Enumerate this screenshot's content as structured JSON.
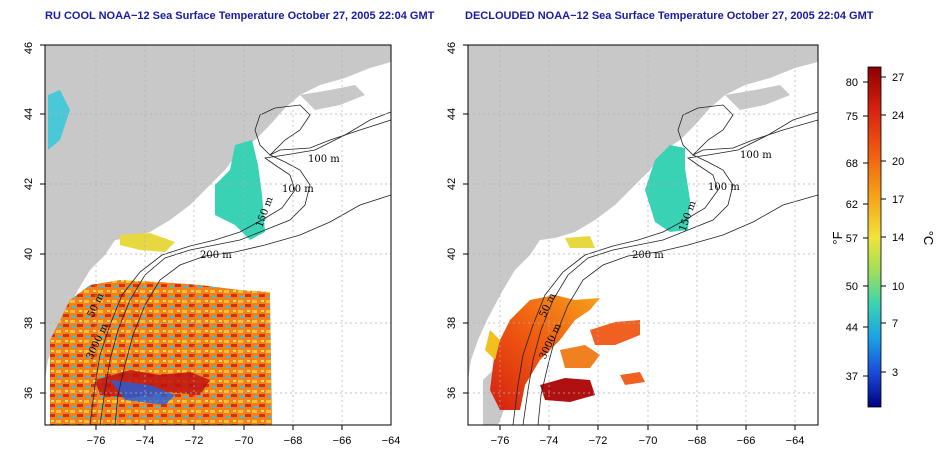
{
  "titles": {
    "left": "RU COOL NOAA−12 Sea Surface Temperature October 27, 2005 22:04 GMT",
    "right": "DECLOUDED NOAA−12 Sea Surface Temperature October 27, 2005 22:04 GMT"
  },
  "axes": {
    "x_ticks": [
      "−76",
      "−74",
      "−72",
      "−70",
      "−68",
      "−66",
      "−64"
    ],
    "y_ticks": [
      "36",
      "38",
      "40",
      "42",
      "44",
      "46"
    ]
  },
  "contour_labels": {
    "left": [
      "100 m",
      "100 m",
      "150 m",
      "200 m",
      "50 m",
      "3000 m"
    ],
    "right": [
      "100 m",
      "100 m",
      "150 m",
      "200 m",
      "50 m",
      "3000 m"
    ]
  },
  "colorbar": {
    "fahrenheit_label": "°F",
    "celsius_label": "°C",
    "fahrenheit_ticks": [
      "80",
      "75",
      "68",
      "62",
      "57",
      "50",
      "44",
      "37"
    ],
    "celsius_ticks": [
      "27",
      "24",
      "20",
      "17",
      "14",
      "10",
      "7",
      "3"
    ],
    "colors": [
      "#8b0000",
      "#d42010",
      "#f05a10",
      "#f6a21a",
      "#f2e23a",
      "#9ee05a",
      "#3ad2b4",
      "#1aa0e6",
      "#1a4ad8",
      "#000080"
    ]
  },
  "colors": {
    "land": "#c8c8c8",
    "title": "#1a1aa6",
    "grid": "#b0b0b0"
  }
}
